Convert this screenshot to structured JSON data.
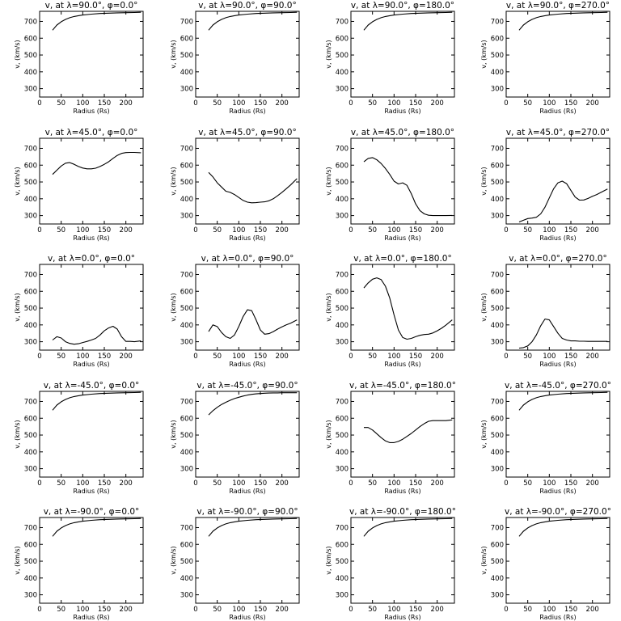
{
  "chart_data": [
    {
      "type": "line",
      "title": "v, at λ=90.0°, φ=0.0°",
      "xlabel": "Radius (Rs)",
      "ylabel": "v, (km/s)",
      "xlim": [
        0,
        240
      ],
      "ylim": [
        250,
        760
      ],
      "xticks": [
        0,
        50,
        100,
        150,
        200
      ],
      "yticks": [
        300,
        400,
        500,
        600,
        700
      ],
      "x": [
        30,
        40,
        50,
        60,
        70,
        80,
        90,
        100,
        120,
        140,
        160,
        180,
        200,
        220,
        235
      ],
      "y": [
        648,
        678,
        698,
        712,
        722,
        729,
        734,
        738,
        743,
        747,
        749,
        751,
        752,
        753,
        754
      ]
    },
    {
      "type": "line",
      "title": "v, at λ=90.0°, φ=90.0°",
      "xlabel": "Radius (Rs)",
      "ylabel": "v, (km/s)",
      "xlim": [
        0,
        240
      ],
      "ylim": [
        250,
        760
      ],
      "xticks": [
        0,
        50,
        100,
        150,
        200
      ],
      "yticks": [
        300,
        400,
        500,
        600,
        700
      ],
      "x": [
        30,
        40,
        50,
        60,
        70,
        80,
        90,
        100,
        120,
        140,
        160,
        180,
        200,
        220,
        235
      ],
      "y": [
        648,
        678,
        698,
        712,
        722,
        729,
        734,
        738,
        743,
        747,
        749,
        751,
        752,
        753,
        754
      ]
    },
    {
      "type": "line",
      "title": "v, at λ=90.0°, φ=180.0°",
      "xlabel": "Radius (Rs)",
      "ylabel": "v, (km/s)",
      "xlim": [
        0,
        240
      ],
      "ylim": [
        250,
        760
      ],
      "xticks": [
        0,
        50,
        100,
        150,
        200
      ],
      "yticks": [
        300,
        400,
        500,
        600,
        700
      ],
      "x": [
        30,
        40,
        50,
        60,
        70,
        80,
        90,
        100,
        120,
        140,
        160,
        180,
        200,
        220,
        235
      ],
      "y": [
        648,
        678,
        698,
        712,
        722,
        729,
        734,
        738,
        743,
        747,
        749,
        751,
        752,
        753,
        754
      ]
    },
    {
      "type": "line",
      "title": "v, at λ=90.0°, φ=270.0°",
      "xlabel": "Radius (Rs)",
      "ylabel": "v, (km/s)",
      "xlim": [
        0,
        240
      ],
      "ylim": [
        250,
        760
      ],
      "xticks": [
        0,
        50,
        100,
        150,
        200
      ],
      "yticks": [
        300,
        400,
        500,
        600,
        700
      ],
      "x": [
        30,
        40,
        50,
        60,
        70,
        80,
        90,
        100,
        120,
        140,
        160,
        180,
        200,
        220,
        235
      ],
      "y": [
        648,
        678,
        698,
        712,
        722,
        729,
        734,
        738,
        743,
        747,
        749,
        751,
        752,
        753,
        754
      ]
    },
    {
      "type": "line",
      "title": "v, at λ=45.0°, φ=0.0°",
      "xlabel": "Radius (Rs)",
      "ylabel": "v, (km/s)",
      "xlim": [
        0,
        240
      ],
      "ylim": [
        250,
        760
      ],
      "xticks": [
        0,
        50,
        100,
        150,
        200
      ],
      "yticks": [
        300,
        400,
        500,
        600,
        700
      ],
      "x": [
        30,
        40,
        50,
        60,
        70,
        80,
        90,
        100,
        110,
        120,
        130,
        140,
        150,
        160,
        170,
        180,
        190,
        200,
        210,
        220,
        235
      ],
      "y": [
        545,
        570,
        595,
        612,
        615,
        605,
        592,
        583,
        578,
        578,
        582,
        592,
        605,
        620,
        640,
        658,
        670,
        675,
        676,
        676,
        674
      ]
    },
    {
      "type": "line",
      "title": "v, at λ=45.0°, φ=90.0°",
      "xlabel": "Radius (Rs)",
      "ylabel": "v, (km/s)",
      "xlim": [
        0,
        240
      ],
      "ylim": [
        250,
        760
      ],
      "xticks": [
        0,
        50,
        100,
        150,
        200
      ],
      "yticks": [
        300,
        400,
        500,
        600,
        700
      ],
      "x": [
        30,
        40,
        50,
        60,
        70,
        80,
        90,
        100,
        110,
        120,
        130,
        140,
        150,
        160,
        170,
        180,
        190,
        200,
        210,
        220,
        235
      ],
      "y": [
        557,
        530,
        495,
        470,
        445,
        438,
        425,
        408,
        390,
        380,
        376,
        377,
        380,
        382,
        388,
        400,
        418,
        438,
        460,
        482,
        520
      ]
    },
    {
      "type": "line",
      "title": "v, at λ=45.0°, φ=180.0°",
      "xlabel": "Radius (Rs)",
      "ylabel": "v, (km/s)",
      "xlim": [
        0,
        240
      ],
      "ylim": [
        250,
        760
      ],
      "xticks": [
        0,
        50,
        100,
        150,
        200
      ],
      "yticks": [
        300,
        400,
        500,
        600,
        700
      ],
      "x": [
        30,
        40,
        50,
        60,
        70,
        80,
        90,
        100,
        110,
        120,
        130,
        140,
        150,
        160,
        170,
        180,
        190,
        200,
        210,
        220,
        235
      ],
      "y": [
        620,
        640,
        645,
        632,
        610,
        580,
        545,
        505,
        488,
        495,
        480,
        430,
        370,
        330,
        310,
        302,
        300,
        300,
        300,
        300,
        301
      ]
    },
    {
      "type": "line",
      "title": "v, at λ=45.0°, φ=270.0°",
      "xlabel": "Radius (Rs)",
      "ylabel": "v, (km/s)",
      "xlim": [
        0,
        240
      ],
      "ylim": [
        250,
        760
      ],
      "xticks": [
        0,
        50,
        100,
        150,
        200
      ],
      "yticks": [
        300,
        400,
        500,
        600,
        700
      ],
      "x": [
        30,
        40,
        50,
        60,
        70,
        80,
        90,
        100,
        110,
        120,
        130,
        140,
        150,
        160,
        170,
        180,
        190,
        200,
        210,
        220,
        235
      ],
      "y": [
        262,
        272,
        282,
        285,
        290,
        310,
        350,
        405,
        460,
        495,
        505,
        490,
        450,
        410,
        392,
        393,
        402,
        415,
        425,
        438,
        458
      ]
    },
    {
      "type": "line",
      "title": "v, at λ=0.0°, φ=0.0°",
      "xlabel": "Radius (Rs)",
      "ylabel": "v, (km/s)",
      "xlim": [
        0,
        240
      ],
      "ylim": [
        250,
        760
      ],
      "xticks": [
        0,
        50,
        100,
        150,
        200
      ],
      "yticks": [
        300,
        400,
        500,
        600,
        700
      ],
      "x": [
        30,
        40,
        50,
        60,
        70,
        80,
        90,
        100,
        110,
        120,
        130,
        140,
        150,
        160,
        170,
        180,
        190,
        200,
        210,
        220,
        235
      ],
      "y": [
        310,
        330,
        322,
        300,
        290,
        285,
        288,
        295,
        302,
        310,
        320,
        340,
        365,
        382,
        392,
        375,
        330,
        302,
        302,
        300,
        305
      ]
    },
    {
      "type": "line",
      "title": "v, at λ=0.0°, φ=90.0°",
      "xlabel": "Radius (Rs)",
      "ylabel": "v, (km/s)",
      "xlim": [
        0,
        240
      ],
      "ylim": [
        250,
        760
      ],
      "xticks": [
        0,
        50,
        100,
        150,
        200
      ],
      "yticks": [
        300,
        400,
        500,
        600,
        700
      ],
      "x": [
        30,
        40,
        50,
        60,
        70,
        80,
        90,
        100,
        110,
        120,
        130,
        140,
        150,
        160,
        170,
        180,
        190,
        200,
        210,
        220,
        235
      ],
      "y": [
        360,
        400,
        390,
        355,
        330,
        320,
        340,
        390,
        450,
        490,
        485,
        430,
        370,
        345,
        348,
        360,
        375,
        388,
        400,
        410,
        430
      ]
    },
    {
      "type": "line",
      "title": "v, at λ=0.0°, φ=180.0°",
      "xlabel": "Radius (Rs)",
      "ylabel": "v, (km/s)",
      "xlim": [
        0,
        240
      ],
      "ylim": [
        250,
        760
      ],
      "xticks": [
        0,
        50,
        100,
        150,
        200
      ],
      "yticks": [
        300,
        400,
        500,
        600,
        700
      ],
      "x": [
        30,
        40,
        50,
        60,
        70,
        80,
        90,
        100,
        110,
        120,
        130,
        140,
        150,
        160,
        170,
        180,
        190,
        200,
        210,
        220,
        235
      ],
      "y": [
        620,
        650,
        672,
        680,
        670,
        630,
        560,
        460,
        370,
        325,
        315,
        320,
        330,
        338,
        343,
        345,
        352,
        365,
        380,
        398,
        430
      ]
    },
    {
      "type": "line",
      "title": "v, at λ=0.0°, φ=270.0°",
      "xlabel": "Radius (Rs)",
      "ylabel": "v, (km/s)",
      "xlim": [
        0,
        240
      ],
      "ylim": [
        250,
        760
      ],
      "xticks": [
        0,
        50,
        100,
        150,
        200
      ],
      "yticks": [
        300,
        400,
        500,
        600,
        700
      ],
      "x": [
        30,
        40,
        50,
        60,
        70,
        80,
        90,
        100,
        110,
        120,
        130,
        140,
        150,
        160,
        170,
        180,
        190,
        200,
        210,
        220,
        235
      ],
      "y": [
        262,
        265,
        275,
        300,
        340,
        395,
        435,
        430,
        390,
        350,
        320,
        310,
        305,
        305,
        303,
        303,
        302,
        302,
        302,
        302,
        302
      ]
    },
    {
      "type": "line",
      "title": "v, at λ=-45.0°, φ=0.0°",
      "xlabel": "Radius (Rs)",
      "ylabel": "v, (km/s)",
      "xlim": [
        0,
        240
      ],
      "ylim": [
        250,
        760
      ],
      "xticks": [
        0,
        50,
        100,
        150,
        200
      ],
      "yticks": [
        300,
        400,
        500,
        600,
        700
      ],
      "x": [
        30,
        40,
        50,
        60,
        70,
        80,
        90,
        100,
        120,
        140,
        160,
        180,
        200,
        220,
        235
      ],
      "y": [
        648,
        678,
        698,
        712,
        722,
        729,
        734,
        738,
        743,
        747,
        749,
        751,
        752,
        753,
        754
      ]
    },
    {
      "type": "line",
      "title": "v, at λ=-45.0°, φ=90.0°",
      "xlabel": "Radius (Rs)",
      "ylabel": "v, (km/s)",
      "xlim": [
        0,
        240
      ],
      "ylim": [
        250,
        760
      ],
      "xticks": [
        0,
        50,
        100,
        150,
        200
      ],
      "yticks": [
        300,
        400,
        500,
        600,
        700
      ],
      "x": [
        30,
        40,
        50,
        60,
        70,
        80,
        90,
        100,
        110,
        120,
        130,
        140,
        150,
        160,
        170,
        180,
        190,
        200,
        210,
        220,
        235
      ],
      "y": [
        620,
        645,
        665,
        682,
        695,
        707,
        717,
        725,
        732,
        738,
        742,
        745,
        747,
        749,
        750,
        751,
        751,
        752,
        752,
        752,
        752
      ]
    },
    {
      "type": "line",
      "title": "v, at λ=-45.0°, φ=180.0°",
      "xlabel": "Radius (Rs)",
      "ylabel": "v, (km/s)",
      "xlim": [
        0,
        240
      ],
      "ylim": [
        250,
        760
      ],
      "xticks": [
        0,
        50,
        100,
        150,
        200
      ],
      "yticks": [
        300,
        400,
        500,
        600,
        700
      ],
      "x": [
        30,
        40,
        50,
        60,
        70,
        80,
        90,
        100,
        110,
        120,
        130,
        140,
        150,
        160,
        170,
        180,
        190,
        200,
        210,
        220,
        235
      ],
      "y": [
        545,
        545,
        530,
        508,
        485,
        465,
        455,
        455,
        462,
        475,
        492,
        510,
        530,
        550,
        568,
        582,
        586,
        586,
        586,
        586,
        590
      ]
    },
    {
      "type": "line",
      "title": "v, at λ=-45.0°, φ=270.0°",
      "xlabel": "Radius (Rs)",
      "ylabel": "v, (km/s)",
      "xlim": [
        0,
        240
      ],
      "ylim": [
        250,
        760
      ],
      "xticks": [
        0,
        50,
        100,
        150,
        200
      ],
      "yticks": [
        300,
        400,
        500,
        600,
        700
      ],
      "x": [
        30,
        40,
        50,
        60,
        70,
        80,
        90,
        100,
        120,
        140,
        160,
        180,
        200,
        220,
        235
      ],
      "y": [
        648,
        678,
        698,
        712,
        722,
        729,
        734,
        738,
        743,
        747,
        749,
        751,
        752,
        753,
        754
      ]
    },
    {
      "type": "line",
      "title": "v, at λ=-90.0°, φ=0.0°",
      "xlabel": "Radius (Rs)",
      "ylabel": "v, (km/s)",
      "xlim": [
        0,
        240
      ],
      "ylim": [
        250,
        760
      ],
      "xticks": [
        0,
        50,
        100,
        150,
        200
      ],
      "yticks": [
        300,
        400,
        500,
        600,
        700
      ],
      "x": [
        30,
        40,
        50,
        60,
        70,
        80,
        90,
        100,
        120,
        140,
        160,
        180,
        200,
        220,
        235
      ],
      "y": [
        648,
        678,
        698,
        712,
        722,
        729,
        734,
        738,
        743,
        747,
        749,
        751,
        752,
        753,
        754
      ]
    },
    {
      "type": "line",
      "title": "v, at λ=-90.0°, φ=90.0°",
      "xlabel": "Radius (Rs)",
      "ylabel": "v, (km/s)",
      "xlim": [
        0,
        240
      ],
      "ylim": [
        250,
        760
      ],
      "xticks": [
        0,
        50,
        100,
        150,
        200
      ],
      "yticks": [
        300,
        400,
        500,
        600,
        700
      ],
      "x": [
        30,
        40,
        50,
        60,
        70,
        80,
        90,
        100,
        120,
        140,
        160,
        180,
        200,
        220,
        235
      ],
      "y": [
        648,
        678,
        698,
        712,
        722,
        729,
        734,
        738,
        743,
        747,
        749,
        751,
        752,
        753,
        754
      ]
    },
    {
      "type": "line",
      "title": "v, at λ=-90.0°, φ=180.0°",
      "xlabel": "Radius (Rs)",
      "ylabel": "v, (km/s)",
      "xlim": [
        0,
        240
      ],
      "ylim": [
        250,
        760
      ],
      "xticks": [
        0,
        50,
        100,
        150,
        200
      ],
      "yticks": [
        300,
        400,
        500,
        600,
        700
      ],
      "x": [
        30,
        40,
        50,
        60,
        70,
        80,
        90,
        100,
        120,
        140,
        160,
        180,
        200,
        220,
        235
      ],
      "y": [
        648,
        678,
        698,
        712,
        722,
        729,
        734,
        738,
        743,
        747,
        749,
        751,
        752,
        753,
        754
      ]
    },
    {
      "type": "line",
      "title": "v, at λ=-90.0°, φ=270.0°",
      "xlabel": "Radius (Rs)",
      "ylabel": "v, (km/s)",
      "xlim": [
        0,
        240
      ],
      "ylim": [
        250,
        760
      ],
      "xticks": [
        0,
        50,
        100,
        150,
        200
      ],
      "yticks": [
        300,
        400,
        500,
        600,
        700
      ],
      "x": [
        30,
        40,
        50,
        60,
        70,
        80,
        90,
        100,
        120,
        140,
        160,
        180,
        200,
        220,
        235
      ],
      "y": [
        648,
        678,
        698,
        712,
        722,
        729,
        734,
        738,
        743,
        747,
        749,
        751,
        752,
        753,
        754
      ]
    }
  ]
}
